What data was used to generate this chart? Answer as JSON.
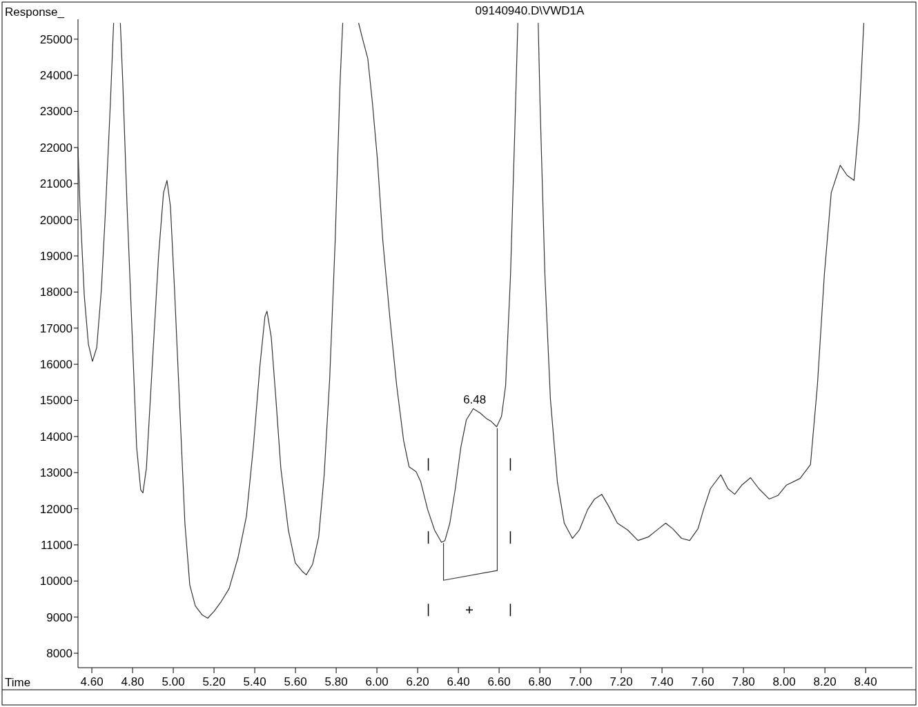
{
  "chart_data": {
    "type": "line",
    "title": "09140940.D\\VWD1A",
    "xlabel": "Time",
    "ylabel": "Response_",
    "xlim": [
      4.532,
      8.63
    ],
    "ylim": [
      7600,
      25550
    ],
    "xticks": [
      {
        "value": 4.6,
        "label": "4.60"
      },
      {
        "value": 4.8,
        "label": "4.80"
      },
      {
        "value": 5.0,
        "label": "5.00"
      },
      {
        "value": 5.2,
        "label": "5.20"
      },
      {
        "value": 5.4,
        "label": "5.40"
      },
      {
        "value": 5.6,
        "label": "5.60"
      },
      {
        "value": 5.8,
        "label": "5.80"
      },
      {
        "value": 6.0,
        "label": "6.00"
      },
      {
        "value": 6.2,
        "label": "6.20"
      },
      {
        "value": 6.4,
        "label": "6.40"
      },
      {
        "value": 6.6,
        "label": "6.60"
      },
      {
        "value": 6.8,
        "label": "6.80"
      },
      {
        "value": 7.0,
        "label": "7.00"
      },
      {
        "value": 7.2,
        "label": "7.20"
      },
      {
        "value": 7.4,
        "label": "7.40"
      },
      {
        "value": 7.6,
        "label": "7.60"
      },
      {
        "value": 7.8,
        "label": "7.80"
      },
      {
        "value": 8.0,
        "label": "8.00"
      },
      {
        "value": 8.2,
        "label": "8.20"
      },
      {
        "value": 8.4,
        "label": "8.40"
      }
    ],
    "yticks": [
      8000,
      9000,
      10000,
      11000,
      12000,
      13000,
      14000,
      15000,
      16000,
      17000,
      18000,
      19000,
      20000,
      21000,
      22000,
      23000,
      24000,
      25000
    ],
    "grid": false,
    "marker": "none",
    "line_style": "solid",
    "series": [
      {
        "color": "#333333",
        "x": [
          4.532,
          4.542,
          4.563,
          4.583,
          4.603,
          4.624,
          4.647,
          4.668,
          4.691,
          4.707,
          4.724,
          4.74,
          4.752,
          4.773,
          4.8,
          4.82,
          4.84,
          4.851,
          4.868,
          4.895,
          4.928,
          4.952,
          4.969,
          4.986,
          5.006,
          5.03,
          5.057,
          5.081,
          5.108,
          5.142,
          5.169,
          5.2,
          5.233,
          5.274,
          5.318,
          5.359,
          5.393,
          5.426,
          5.45,
          5.46,
          5.481,
          5.504,
          5.528,
          5.565,
          5.599,
          5.633,
          5.653,
          5.684,
          5.714,
          5.741,
          5.768,
          5.795,
          5.819,
          5.832,
          5.87,
          5.91,
          5.928,
          5.955,
          5.978,
          6.002,
          6.029,
          6.063,
          6.097,
          6.131,
          6.158,
          6.192,
          6.215,
          6.249,
          6.283,
          6.317,
          6.334,
          6.358,
          6.385,
          6.412,
          6.439,
          6.473,
          6.507,
          6.537,
          6.561,
          6.588,
          6.612,
          6.632,
          6.656,
          6.676,
          6.692,
          6.74,
          6.792,
          6.801,
          6.825,
          6.852,
          6.886,
          6.92,
          6.96,
          6.994,
          7.035,
          7.069,
          7.104,
          7.137,
          7.181,
          7.232,
          7.282,
          7.333,
          7.384,
          7.418,
          7.452,
          7.496,
          7.536,
          7.577,
          7.604,
          7.638,
          7.689,
          7.723,
          7.757,
          7.791,
          7.835,
          7.875,
          7.926,
          7.97,
          8.01,
          8.078,
          8.129,
          8.163,
          8.197,
          8.231,
          8.275,
          8.309,
          8.343,
          8.367,
          8.391
        ],
        "values": [
          21990,
          20370,
          17890,
          16560,
          16080,
          16460,
          18080,
          20370,
          23230,
          25450,
          null,
          25450,
          23800,
          20370,
          16560,
          13700,
          12520,
          12440,
          13130,
          15800,
          19030,
          20750,
          21090,
          20370,
          18080,
          15030,
          11600,
          9890,
          9310,
          9060,
          8970,
          9160,
          9410,
          9790,
          10650,
          11790,
          13700,
          15990,
          17320,
          17470,
          16750,
          15030,
          13130,
          11410,
          10500,
          10270,
          10170,
          10460,
          11220,
          12940,
          15600,
          19420,
          23800,
          25450,
          null,
          25450,
          25040,
          24470,
          23230,
          21700,
          19420,
          17320,
          15410,
          13890,
          13160,
          13030,
          12750,
          11980,
          11410,
          11070,
          11120,
          11600,
          12560,
          13700,
          14460,
          14770,
          14650,
          14500,
          14420,
          14270,
          14560,
          15410,
          18460,
          22270,
          25450,
          null,
          25450,
          23230,
          18460,
          15030,
          12750,
          11600,
          11180,
          11410,
          11980,
          12270,
          12400,
          12080,
          11600,
          11410,
          11120,
          11220,
          11450,
          11600,
          11450,
          11180,
          11120,
          11450,
          11980,
          12560,
          12940,
          12560,
          12400,
          12650,
          12860,
          12560,
          12270,
          12370,
          12650,
          12840,
          13220,
          15410,
          18460,
          20750,
          21510,
          21230,
          21090,
          22660,
          25450
        ]
      },
      {
        "color": "#333333",
        "x": [
          6.327,
          6.327,
          6.591,
          6.591
        ],
        "values": [
          11050,
          10020,
          10290,
          14230
        ]
      }
    ],
    "annotations": [
      {
        "text": "6.48",
        "x": 6.48,
        "y": 14770
      }
    ]
  }
}
